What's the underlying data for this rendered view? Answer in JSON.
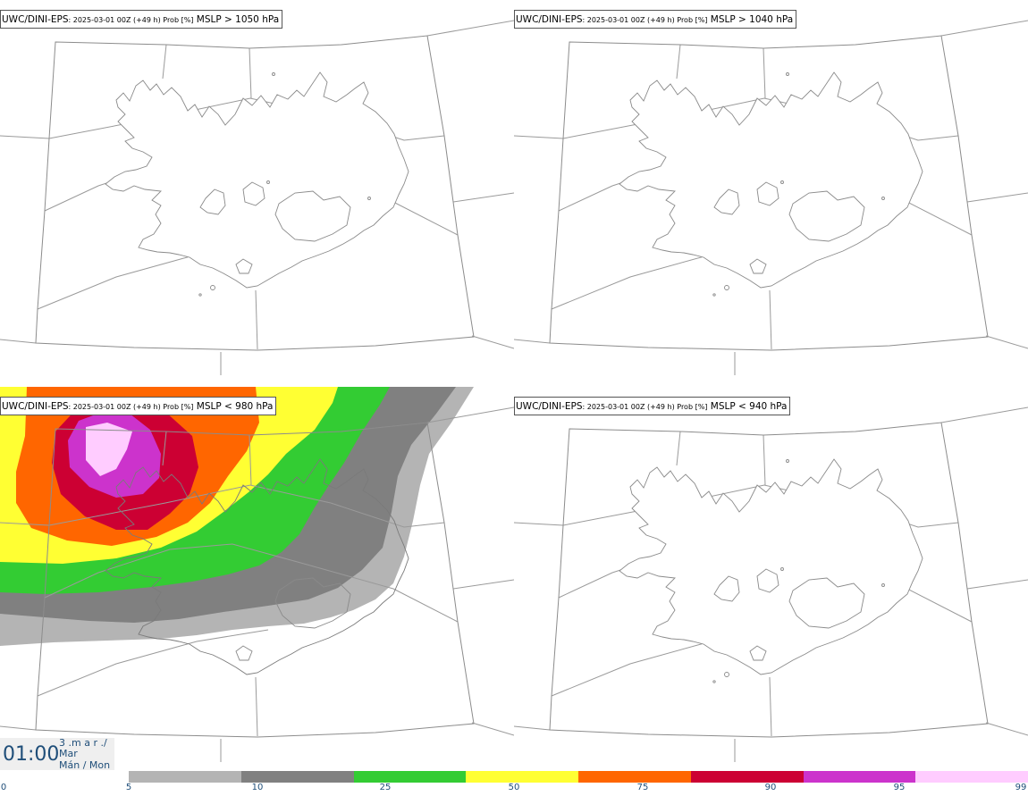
{
  "panels": [
    {
      "model": "UWC/DINI-EPS",
      "subtitle": ": 2025-03-01 00Z (+49 h) Prob [%]",
      "threshold": " MSLP > 1050 hPa"
    },
    {
      "model": "UWC/DINI-EPS",
      "subtitle": ": 2025-03-01 00Z (+49 h) Prob [%]",
      "threshold": " MSLP > 1040 hPa"
    },
    {
      "model": "UWC/DINI-EPS",
      "subtitle": ": 2025-03-01 00Z (+49 h) Prob [%]",
      "threshold": " MSLP < 980 hPa"
    },
    {
      "model": "UWC/DINI-EPS",
      "subtitle": ": 2025-03-01 00Z (+49 h) Prob [%]",
      "threshold": " MSLP < 940 hPa"
    }
  ],
  "time": {
    "clock": "01:00",
    "line1": "3 .m a r ./",
    "line2": "Mar",
    "line3": "Mán / Mon"
  },
  "colorbar": {
    "ticks": [
      "0",
      "5",
      "10",
      "25",
      "50",
      "75",
      "90",
      "95",
      "99"
    ],
    "colors": [
      "#b4b4b4",
      "#808080",
      "#33cc33",
      "#ffff33",
      "#ff6600",
      "#cc0033",
      "#cc33cc",
      "#ffccff"
    ]
  }
}
